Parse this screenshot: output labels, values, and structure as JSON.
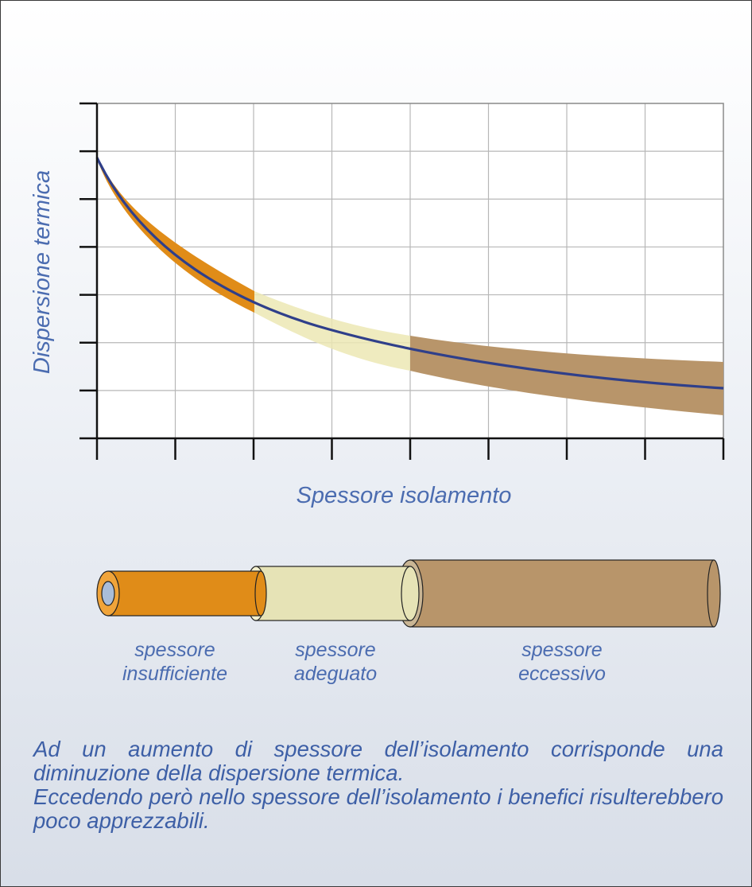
{
  "figure": {
    "ylabel": "Dispersione termica",
    "xlabel": "Spessore isolamento",
    "colors": {
      "curve": "#2f3f8a",
      "insufficient": "#e08c18",
      "adequate": "#ece7b4",
      "excessive": "#b8956a",
      "grid": "#b7b7b7",
      "text": "#4b6cb0"
    }
  },
  "segments": [
    {
      "line1": "spessore",
      "line2": "insufficiente"
    },
    {
      "line1": "spessore",
      "line2": "adeguato"
    },
    {
      "line1": "spessore",
      "line2": "eccessivo"
    }
  ],
  "caption": {
    "p1": "Ad un aumento di spessore dell’isolamento corrisponde una diminuzione della dispersione termica.",
    "p2": "Eccedendo però nello spessore dell’isolamento i benefici risulterebbero poco apprezzabili."
  }
}
